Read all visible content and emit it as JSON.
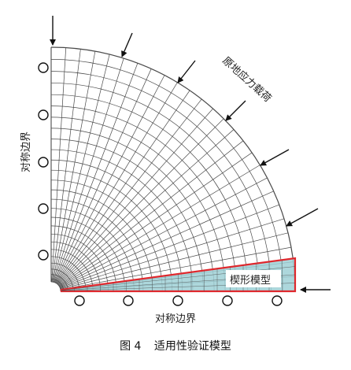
{
  "labels": {
    "load": "原地应力载荷",
    "sym_left": "对称边界",
    "sym_bottom": "对称边界",
    "wedge": "楔形模型"
  },
  "caption": {
    "figure_no": "图 4",
    "text": "适用性验证模型"
  },
  "colors": {
    "mesh": "#4a4a4a",
    "wedge_fill": "#9fd0d6",
    "wedge_border": "#e0282d",
    "arrow": "#111111"
  }
}
